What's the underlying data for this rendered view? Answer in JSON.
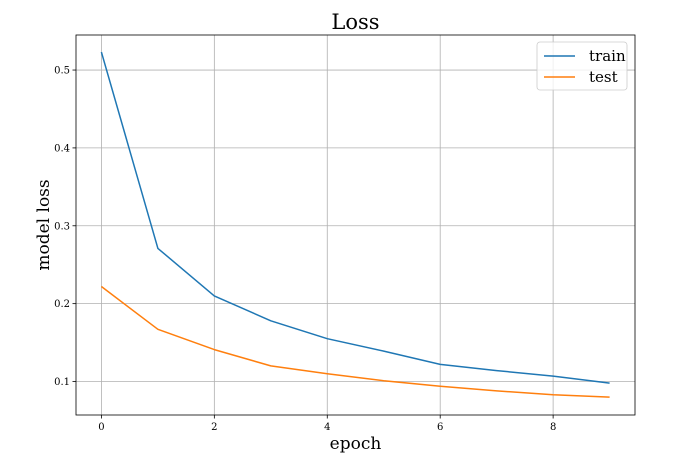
{
  "chart_data": {
    "type": "line",
    "title": "Loss",
    "xlabel": "epoch",
    "ylabel": "model loss",
    "x": [
      0,
      1,
      2,
      3,
      4,
      5,
      6,
      7,
      8,
      9
    ],
    "series": [
      {
        "name": "train",
        "color": "#1f77b4",
        "values": [
          0.523,
          0.271,
          0.21,
          0.178,
          0.155,
          0.139,
          0.122,
          0.114,
          0.107,
          0.098
        ]
      },
      {
        "name": "test",
        "color": "#ff7f0e",
        "values": [
          0.222,
          0.167,
          0.141,
          0.12,
          0.11,
          0.101,
          0.094,
          0.088,
          0.083,
          0.08
        ]
      }
    ],
    "xlim": [
      -0.45,
      9.45
    ],
    "ylim": [
      0.057,
      0.545
    ],
    "xticks": [
      0,
      2,
      4,
      6,
      8
    ],
    "xtick_labels": [
      "0",
      "2",
      "4",
      "6",
      "8"
    ],
    "yticks": [
      0.1,
      0.2,
      0.3,
      0.4,
      0.5
    ],
    "ytick_labels": [
      "0.1",
      "0.2",
      "0.3",
      "0.4",
      "0.5"
    ],
    "grid": true,
    "legend_position": "upper-right"
  }
}
